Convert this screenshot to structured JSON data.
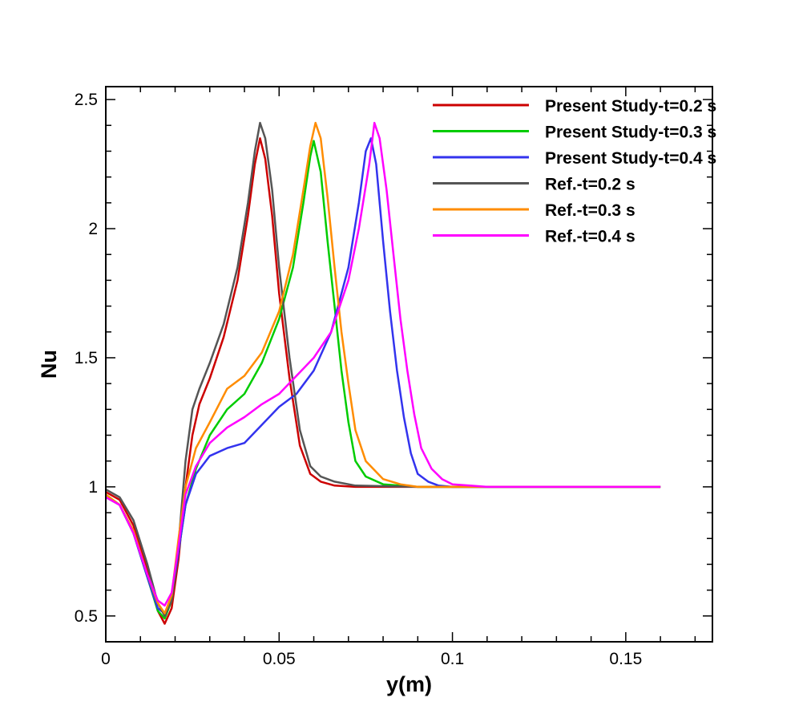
{
  "chart_data": {
    "type": "line",
    "title": "",
    "xlabel": "y(m)",
    "ylabel": "Nu",
    "xlim": [
      0,
      0.175
    ],
    "ylim": [
      0.4,
      2.55
    ],
    "x_ticks": [
      0,
      0.05,
      0.1,
      0.15
    ],
    "x_tick_labels": [
      "0",
      "0.05",
      "0.1",
      "0.15"
    ],
    "y_ticks": [
      0.5,
      1,
      1.5,
      2,
      2.5
    ],
    "y_tick_labels": [
      "0.5",
      "1",
      "1.5",
      "2",
      "2.5"
    ],
    "grid": false,
    "legend_position": "top-right",
    "series": [
      {
        "name": "Present Study-t=0.2 s",
        "color": "#cc0000",
        "points": [
          [
            0,
            0.98
          ],
          [
            0.004,
            0.95
          ],
          [
            0.008,
            0.85
          ],
          [
            0.012,
            0.68
          ],
          [
            0.015,
            0.52
          ],
          [
            0.017,
            0.47
          ],
          [
            0.019,
            0.53
          ],
          [
            0.021,
            0.72
          ],
          [
            0.023,
            1.0
          ],
          [
            0.025,
            1.2
          ],
          [
            0.027,
            1.32
          ],
          [
            0.03,
            1.42
          ],
          [
            0.034,
            1.58
          ],
          [
            0.038,
            1.8
          ],
          [
            0.041,
            2.05
          ],
          [
            0.043,
            2.25
          ],
          [
            0.0445,
            2.35
          ],
          [
            0.046,
            2.27
          ],
          [
            0.048,
            2.05
          ],
          [
            0.05,
            1.75
          ],
          [
            0.053,
            1.42
          ],
          [
            0.056,
            1.16
          ],
          [
            0.059,
            1.05
          ],
          [
            0.062,
            1.02
          ],
          [
            0.066,
            1.005
          ],
          [
            0.072,
            1.0
          ],
          [
            0.16,
            1.0
          ]
        ]
      },
      {
        "name": "Present Study-t=0.3 s",
        "color": "#00cc00",
        "points": [
          [
            0,
            0.97
          ],
          [
            0.004,
            0.93
          ],
          [
            0.008,
            0.82
          ],
          [
            0.012,
            0.65
          ],
          [
            0.015,
            0.52
          ],
          [
            0.017,
            0.49
          ],
          [
            0.019,
            0.56
          ],
          [
            0.021,
            0.75
          ],
          [
            0.023,
            0.93
          ],
          [
            0.026,
            1.07
          ],
          [
            0.03,
            1.2
          ],
          [
            0.035,
            1.3
          ],
          [
            0.04,
            1.36
          ],
          [
            0.045,
            1.48
          ],
          [
            0.05,
            1.65
          ],
          [
            0.054,
            1.85
          ],
          [
            0.057,
            2.1
          ],
          [
            0.059,
            2.28
          ],
          [
            0.06,
            2.34
          ],
          [
            0.062,
            2.22
          ],
          [
            0.064,
            1.95
          ],
          [
            0.066,
            1.7
          ],
          [
            0.068,
            1.45
          ],
          [
            0.07,
            1.25
          ],
          [
            0.072,
            1.1
          ],
          [
            0.075,
            1.04
          ],
          [
            0.08,
            1.01
          ],
          [
            0.09,
            1.0
          ],
          [
            0.16,
            1.0
          ]
        ]
      },
      {
        "name": "Present Study-t=0.4 s",
        "color": "#3333ee",
        "points": [
          [
            0,
            0.96
          ],
          [
            0.004,
            0.93
          ],
          [
            0.008,
            0.82
          ],
          [
            0.012,
            0.65
          ],
          [
            0.015,
            0.53
          ],
          [
            0.017,
            0.51
          ],
          [
            0.019,
            0.57
          ],
          [
            0.021,
            0.75
          ],
          [
            0.023,
            0.93
          ],
          [
            0.026,
            1.05
          ],
          [
            0.03,
            1.12
          ],
          [
            0.035,
            1.15
          ],
          [
            0.04,
            1.17
          ],
          [
            0.045,
            1.24
          ],
          [
            0.05,
            1.31
          ],
          [
            0.055,
            1.36
          ],
          [
            0.06,
            1.45
          ],
          [
            0.065,
            1.6
          ],
          [
            0.07,
            1.85
          ],
          [
            0.073,
            2.1
          ],
          [
            0.075,
            2.3
          ],
          [
            0.0765,
            2.35
          ],
          [
            0.078,
            2.25
          ],
          [
            0.08,
            1.95
          ],
          [
            0.082,
            1.68
          ],
          [
            0.084,
            1.45
          ],
          [
            0.086,
            1.27
          ],
          [
            0.088,
            1.13
          ],
          [
            0.09,
            1.05
          ],
          [
            0.093,
            1.02
          ],
          [
            0.096,
            1.005
          ],
          [
            0.1,
            1.0
          ],
          [
            0.16,
            1.0
          ]
        ]
      },
      {
        "name": "Ref.-t=0.2 s",
        "color": "#555555",
        "points": [
          [
            0,
            0.99
          ],
          [
            0.004,
            0.96
          ],
          [
            0.008,
            0.87
          ],
          [
            0.012,
            0.7
          ],
          [
            0.015,
            0.55
          ],
          [
            0.017,
            0.5
          ],
          [
            0.019,
            0.56
          ],
          [
            0.021,
            0.78
          ],
          [
            0.023,
            1.1
          ],
          [
            0.025,
            1.3
          ],
          [
            0.027,
            1.38
          ],
          [
            0.03,
            1.48
          ],
          [
            0.034,
            1.63
          ],
          [
            0.038,
            1.85
          ],
          [
            0.041,
            2.1
          ],
          [
            0.043,
            2.3
          ],
          [
            0.0445,
            2.41
          ],
          [
            0.046,
            2.35
          ],
          [
            0.048,
            2.15
          ],
          [
            0.05,
            1.85
          ],
          [
            0.053,
            1.5
          ],
          [
            0.056,
            1.22
          ],
          [
            0.059,
            1.08
          ],
          [
            0.062,
            1.04
          ],
          [
            0.066,
            1.02
          ],
          [
            0.072,
            1.005
          ],
          [
            0.09,
            1.0
          ],
          [
            0.16,
            1.0
          ]
        ]
      },
      {
        "name": "Ref.-t=0.3 s",
        "color": "#ff8c00",
        "points": [
          [
            0,
            0.97
          ],
          [
            0.004,
            0.93
          ],
          [
            0.008,
            0.83
          ],
          [
            0.012,
            0.66
          ],
          [
            0.015,
            0.55
          ],
          [
            0.017,
            0.51
          ],
          [
            0.019,
            0.58
          ],
          [
            0.021,
            0.8
          ],
          [
            0.023,
            1.0
          ],
          [
            0.026,
            1.15
          ],
          [
            0.03,
            1.25
          ],
          [
            0.035,
            1.38
          ],
          [
            0.04,
            1.43
          ],
          [
            0.045,
            1.52
          ],
          [
            0.05,
            1.68
          ],
          [
            0.054,
            1.9
          ],
          [
            0.057,
            2.15
          ],
          [
            0.059,
            2.32
          ],
          [
            0.0605,
            2.41
          ],
          [
            0.062,
            2.35
          ],
          [
            0.064,
            2.12
          ],
          [
            0.066,
            1.85
          ],
          [
            0.068,
            1.6
          ],
          [
            0.07,
            1.4
          ],
          [
            0.072,
            1.22
          ],
          [
            0.075,
            1.1
          ],
          [
            0.08,
            1.03
          ],
          [
            0.085,
            1.01
          ],
          [
            0.09,
            1.0
          ],
          [
            0.16,
            1.0
          ]
        ]
      },
      {
        "name": "Ref.-t=0.4 s",
        "color": "#ff00ff",
        "points": [
          [
            0,
            0.96
          ],
          [
            0.004,
            0.93
          ],
          [
            0.008,
            0.82
          ],
          [
            0.012,
            0.66
          ],
          [
            0.015,
            0.56
          ],
          [
            0.017,
            0.54
          ],
          [
            0.019,
            0.59
          ],
          [
            0.021,
            0.77
          ],
          [
            0.023,
            0.97
          ],
          [
            0.026,
            1.08
          ],
          [
            0.03,
            1.17
          ],
          [
            0.035,
            1.23
          ],
          [
            0.04,
            1.27
          ],
          [
            0.045,
            1.32
          ],
          [
            0.05,
            1.36
          ],
          [
            0.055,
            1.43
          ],
          [
            0.06,
            1.5
          ],
          [
            0.065,
            1.6
          ],
          [
            0.07,
            1.8
          ],
          [
            0.073,
            2.0
          ],
          [
            0.076,
            2.25
          ],
          [
            0.0775,
            2.41
          ],
          [
            0.079,
            2.35
          ],
          [
            0.081,
            2.15
          ],
          [
            0.083,
            1.9
          ],
          [
            0.085,
            1.65
          ],
          [
            0.087,
            1.45
          ],
          [
            0.089,
            1.28
          ],
          [
            0.091,
            1.15
          ],
          [
            0.094,
            1.07
          ],
          [
            0.097,
            1.03
          ],
          [
            0.1,
            1.01
          ],
          [
            0.105,
            1.005
          ],
          [
            0.11,
            1.0
          ],
          [
            0.16,
            1.0
          ]
        ]
      }
    ]
  }
}
